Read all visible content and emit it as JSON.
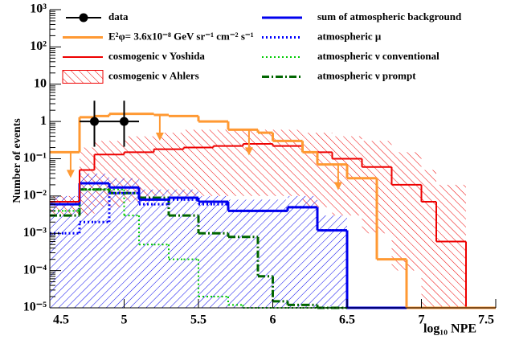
{
  "chart_data": {
    "type": "histogram",
    "y_label": "Number of events",
    "x_label": "log₁₀ NPE",
    "xlim": [
      4.5,
      7.5
    ],
    "xticks": [
      4.5,
      5,
      5.5,
      6,
      6.5,
      7,
      7.5
    ],
    "ylim": [
      1e-05,
      1000
    ],
    "log_y": true,
    "yticks": [
      {
        "value": 1e-05,
        "label": "10⁻⁵"
      },
      {
        "value": 0.0001,
        "label": "10⁻⁴"
      },
      {
        "value": 0.001,
        "label": "10⁻³"
      },
      {
        "value": 0.01,
        "label": "10⁻²"
      },
      {
        "value": 0.1,
        "label": "10⁻¹"
      },
      1,
      10,
      {
        "value": 100,
        "label": "10²"
      },
      {
        "value": 1000,
        "label": "10³"
      }
    ],
    "bins": [
      4.5,
      4.6,
      4.7,
      4.8,
      4.9,
      5.0,
      5.1,
      5.2,
      5.3,
      5.4,
      5.5,
      5.6,
      5.7,
      5.8,
      5.9,
      6.0,
      6.1,
      6.2,
      6.3,
      6.4,
      6.5,
      6.6,
      6.7,
      6.8,
      6.9,
      7.0,
      7.1,
      7.2,
      7.3,
      7.4,
      7.5
    ],
    "points": {
      "name": "data",
      "color": "#000000",
      "x": [
        4.8,
        5.0
      ],
      "y": [
        1,
        1
      ],
      "x_err": [
        0.1,
        0.1
      ],
      "y_err_low": [
        0.79,
        0.79
      ],
      "y_err_high": [
        2.6,
        2.6
      ]
    },
    "series": [
      {
        "name": "E²φ= 3.6x10⁻⁸ GeV sr⁻¹ cm⁻² s⁻¹",
        "color": "#ff9933",
        "style": "step",
        "width": 3,
        "arrows_x": [
          4.64,
          5.24,
          5.84,
          6.44
        ],
        "values": [
          0.15,
          0.15,
          1.3,
          1.4,
          1.6,
          1.6,
          1.6,
          1.5,
          1.4,
          1.4,
          1.0,
          1.0,
          0.6,
          0.6,
          0.5,
          0.3,
          0.3,
          0.15,
          0.07,
          0.07,
          0.03,
          0.03,
          0.0002,
          0.0002,
          0,
          0,
          0,
          0,
          0,
          0
        ]
      },
      {
        "name": "cosmogenic ν Yoshida",
        "color": "#ee0000",
        "style": "step",
        "width": 2,
        "values": [
          0.007,
          0.007,
          0.05,
          0.13,
          0.13,
          0.15,
          0.15,
          0.18,
          0.18,
          0.2,
          0.2,
          0.22,
          0.22,
          0.25,
          0.25,
          0.22,
          0.22,
          0.15,
          0.15,
          0.1,
          0.1,
          0.06,
          0.06,
          0.02,
          0.02,
          0.007,
          0.0006,
          0.0006,
          0,
          0
        ]
      },
      {
        "name": "cosmogenic ν Ahlers",
        "color": "#ee0000",
        "style": "band",
        "high": [
          0.01,
          0.01,
          0.2,
          0.3,
          0.3,
          0.4,
          0.4,
          0.5,
          0.5,
          0.6,
          0.6,
          0.6,
          0.6,
          0.6,
          0.6,
          0.6,
          0.6,
          0.5,
          0.5,
          0.4,
          0.4,
          0.3,
          0.3,
          0.15,
          0.15,
          0.05,
          0.02,
          0.02,
          0,
          0
        ],
        "low": [
          0.003,
          0.003,
          0.003,
          0.005,
          0.005,
          0.007,
          0.007,
          0.01,
          0.01,
          0.01,
          0.01,
          0.01,
          0.01,
          0.01,
          0.01,
          0.01,
          0.01,
          0.005,
          0.005,
          0.003,
          0.003,
          0.001,
          0.001,
          0.0001,
          0.0001,
          1e-05,
          1e-05,
          1e-05,
          0,
          0
        ]
      },
      {
        "name": "sum of atmospheric background",
        "color": "#0000ee",
        "style": "step",
        "width": 3,
        "band_color": "#0000ee",
        "values": [
          0.006,
          0.006,
          0.022,
          0.022,
          0.017,
          0.017,
          0.008,
          0.008,
          0.009,
          0.009,
          0.007,
          0.007,
          0.004,
          0.004,
          0.004,
          0.004,
          0.005,
          0.005,
          0.0012,
          0.0012,
          0,
          0,
          0,
          0,
          0,
          0,
          0,
          0,
          1e-05,
          1e-05
        ],
        "band_high": [
          0.01,
          0.01,
          0.04,
          0.04,
          0.03,
          0.03,
          0.015,
          0.015,
          0.015,
          0.015,
          0.01,
          0.01,
          0.008,
          0.008,
          0.008,
          0.008,
          0.01,
          0.01,
          0.003,
          0.003,
          0,
          0,
          0,
          0,
          0,
          0,
          0,
          0,
          0,
          0
        ],
        "band_low": [
          1e-05,
          1e-05,
          1e-05,
          1e-05,
          1e-05,
          1e-05,
          1e-05,
          1e-05,
          1e-05,
          1e-05,
          1e-05,
          1e-05,
          1e-05,
          1e-05,
          1e-05,
          1e-05,
          1e-05,
          1e-05,
          1e-05,
          1e-05,
          0,
          0,
          0,
          0,
          0,
          0,
          0,
          0,
          0,
          0
        ]
      },
      {
        "name": "atmospheric μ",
        "color": "#0000ff",
        "style": "dotted",
        "width": 3,
        "values": [
          0.001,
          0.001,
          0.002,
          0.002,
          0.012,
          0.012,
          0.006,
          0.006,
          0.008,
          0.008,
          0.006,
          0.006,
          0.004,
          0.004,
          0.004,
          0.004,
          0.005,
          0.005,
          0.0012,
          0.0012,
          0,
          0,
          0,
          0,
          0,
          0,
          0,
          0,
          0,
          0
        ]
      },
      {
        "name": "atmospheric ν conventional",
        "color": "#00cc00",
        "style": "dotted",
        "width": 2,
        "values": [
          0.004,
          0.004,
          0.015,
          0.015,
          0.015,
          0.003,
          0.0005,
          0.0005,
          0.0002,
          0.0002,
          2e-05,
          2e-05,
          1.2e-05,
          1e-05,
          1e-05,
          1e-05,
          1e-05,
          1e-05,
          1e-05,
          1e-05,
          1e-05,
          0,
          0,
          0,
          0,
          0,
          0,
          0,
          0,
          0
        ]
      },
      {
        "name": "atmospheric ν prompt",
        "color": "#006600",
        "style": "dashdot",
        "width": 3,
        "values": [
          0.003,
          0.003,
          0.015,
          0.015,
          0.012,
          0.012,
          0.009,
          0.009,
          0.003,
          0.003,
          0.001,
          0.001,
          0.0008,
          0.0008,
          7e-05,
          1.5e-05,
          1.2e-05,
          1.2e-05,
          1e-05,
          1e-05,
          0,
          0,
          0,
          0,
          0,
          0,
          0,
          0,
          0,
          0
        ]
      }
    ]
  }
}
